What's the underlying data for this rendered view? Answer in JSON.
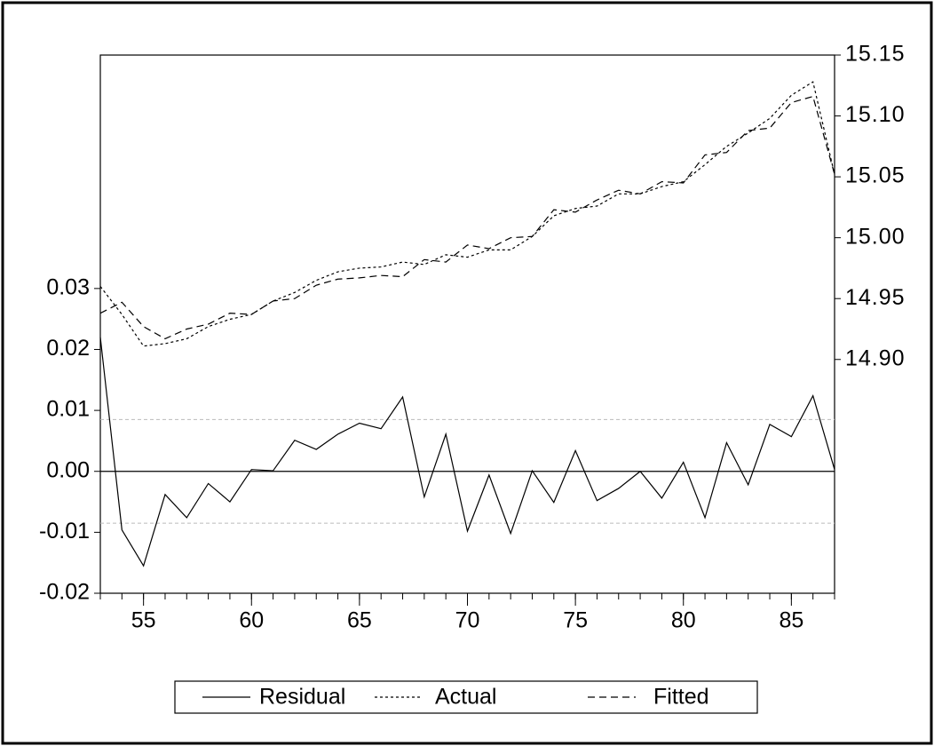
{
  "chart_data": {
    "type": "line",
    "x": [
      53,
      54,
      55,
      56,
      57,
      58,
      59,
      60,
      61,
      62,
      63,
      64,
      65,
      66,
      67,
      68,
      69,
      70,
      71,
      72,
      73,
      74,
      75,
      76,
      77,
      78,
      79,
      80,
      81,
      82,
      83,
      84,
      85,
      86,
      87
    ],
    "xlim": [
      53,
      87
    ],
    "xticks": [
      55,
      60,
      65,
      70,
      75,
      80,
      85
    ],
    "ylim": [
      -0.02,
      0.0683
    ],
    "yticks": [
      {
        "value": -0.02,
        "label": "-0.02"
      },
      {
        "value": -0.01,
        "label": "-0.01"
      },
      {
        "value": 0,
        "label": "0.00"
      },
      {
        "value": 0.01,
        "label": "0.01"
      },
      {
        "value": 0.02,
        "label": "0.02"
      },
      {
        "value": 0.03,
        "label": "0.03"
      }
    ],
    "y2lim": [
      14.708,
      15.15
    ],
    "y2ticks": [
      {
        "value": 14.9,
        "label": "14.90"
      },
      14.95,
      {
        "value": 15.0,
        "label": "15.00"
      },
      15.05,
      {
        "value": 15.1,
        "label": "15.10"
      },
      15.15
    ],
    "reference_lines": [
      0,
      0.0085,
      -0.0085
    ],
    "series": [
      {
        "name": "Residual",
        "color": "#000000",
        "style": "solid",
        "values": [
          0.022,
          -0.0096,
          -0.0155,
          -0.0038,
          -0.0076,
          -0.002,
          -0.005,
          0.0003,
          0.0001,
          0.0051,
          0.0036,
          0.0061,
          0.0079,
          0.007,
          0.0122,
          -0.0042,
          0.0061,
          -0.0098,
          -0.0006,
          -0.0102,
          0.0001,
          -0.0051,
          0.0034,
          -0.0048,
          -0.0028,
          0.0,
          -0.0044,
          0.0015,
          -0.0076,
          0.0047,
          -0.0022,
          0.0077,
          0.0057,
          0.0124,
          0.0003
        ]
      },
      {
        "name": "Actual",
        "color": "#000000",
        "style": "dotted",
        "axis": "y2",
        "values": [
          14.96,
          14.937,
          14.911,
          14.913,
          14.917,
          14.927,
          14.933,
          14.937,
          14.948,
          14.955,
          14.965,
          14.972,
          14.975,
          14.976,
          14.98,
          14.978,
          14.986,
          14.984,
          14.99,
          14.99,
          15.001,
          15.018,
          15.024,
          15.026,
          15.036,
          15.036,
          15.042,
          15.046,
          15.06,
          15.075,
          15.086,
          15.098,
          15.117,
          15.128,
          15.052
        ]
      },
      {
        "name": "Fitted",
        "color": "#000000",
        "style": "dashed",
        "axis": "y2",
        "values": [
          14.938,
          14.947,
          14.927,
          14.917,
          14.925,
          14.929,
          14.938,
          14.937,
          14.948,
          14.95,
          14.961,
          14.966,
          14.967,
          14.969,
          14.968,
          14.982,
          14.98,
          14.994,
          14.991,
          15.0,
          15.001,
          15.023,
          15.021,
          15.031,
          15.039,
          15.036,
          15.046,
          15.045,
          15.068,
          15.07,
          15.088,
          15.09,
          15.111,
          15.116,
          15.052
        ]
      }
    ]
  }
}
